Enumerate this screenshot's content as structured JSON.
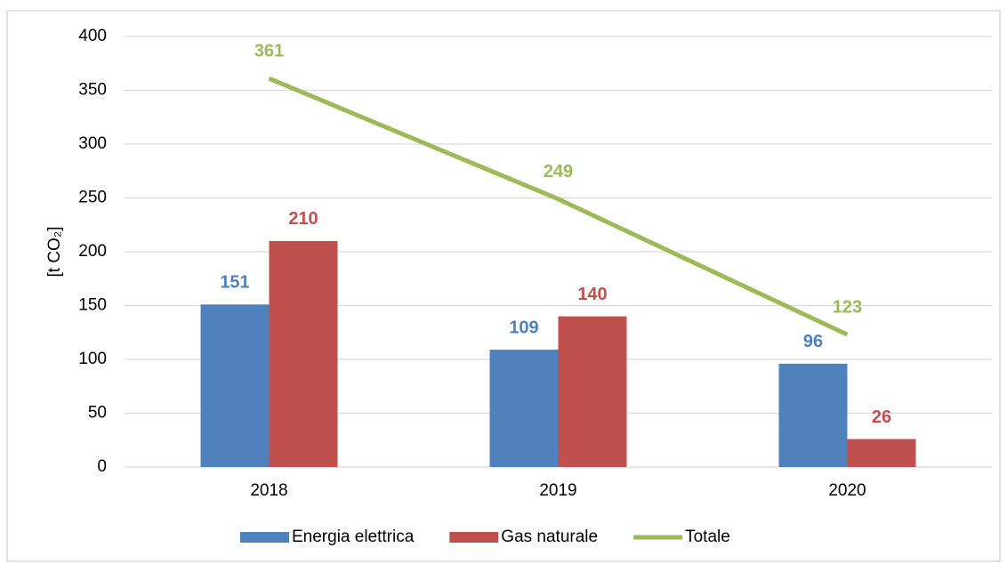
{
  "chart_data": {
    "type": "bar",
    "y_label": "[t CO₂]",
    "categories": [
      "2018",
      "2019",
      "2020"
    ],
    "series": [
      {
        "name": "Energia elettrica",
        "color": "#4f81bd",
        "type": "bar",
        "values": [
          151,
          109,
          96
        ]
      },
      {
        "name": "Gas naturale",
        "color": "#c0504d",
        "type": "bar",
        "values": [
          210,
          140,
          26
        ]
      },
      {
        "name": "Totale",
        "color": "#9bbb59",
        "type": "line",
        "values": [
          361,
          249,
          123
        ]
      }
    ],
    "ylim": [
      0,
      400
    ],
    "yticks": [
      0,
      50,
      100,
      150,
      200,
      250,
      300,
      350,
      400
    ],
    "grid": true,
    "legend": "bottom"
  }
}
